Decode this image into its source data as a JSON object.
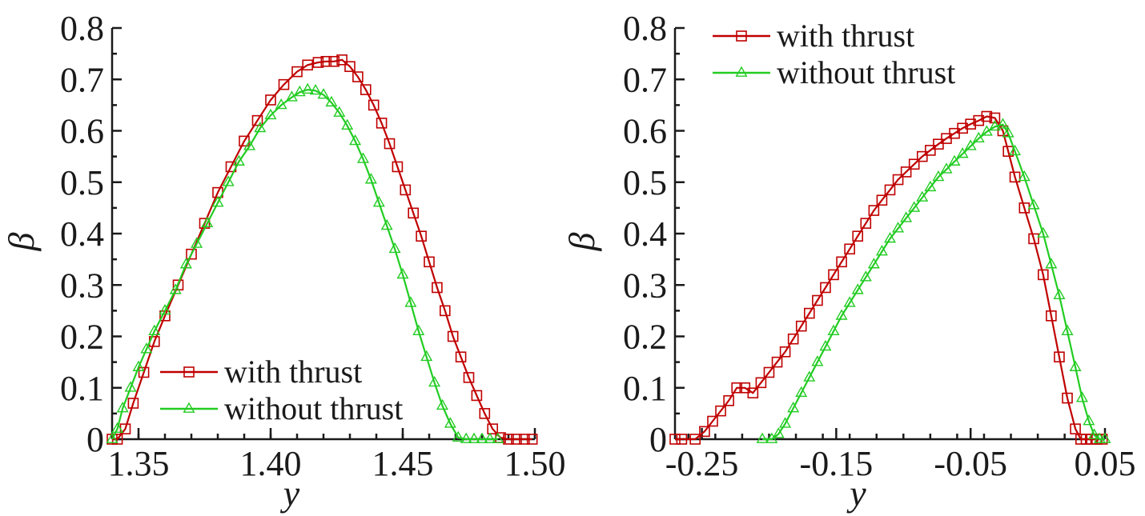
{
  "chart_data": [
    {
      "type": "line",
      "xlabel": "y",
      "ylabel": "β",
      "xlim": [
        1.34,
        1.5
      ],
      "ylim": [
        0,
        0.8
      ],
      "grid": false,
      "legend_position": "bottom-left",
      "x_ticks": [
        1.35,
        1.4,
        1.45,
        1.5
      ],
      "x_tick_labels": [
        "1.35",
        "1.40",
        "1.45",
        "1.50"
      ],
      "x_minor_step": 0.01,
      "y_ticks": [
        0,
        0.1,
        0.2,
        0.3,
        0.4,
        0.5,
        0.6,
        0.7,
        0.8
      ],
      "y_tick_labels": [
        "0",
        "0.1",
        "0.2",
        "0.3",
        "0.4",
        "0.5",
        "0.6",
        "0.7",
        "0.8"
      ],
      "series": [
        {
          "name": "with thrust",
          "color": "#c00000",
          "marker": "square",
          "x": [
            1.34,
            1.342,
            1.345,
            1.348,
            1.352,
            1.356,
            1.36,
            1.365,
            1.37,
            1.375,
            1.38,
            1.385,
            1.39,
            1.395,
            1.4,
            1.405,
            1.41,
            1.414,
            1.418,
            1.421,
            1.424,
            1.427,
            1.43,
            1.433,
            1.436,
            1.439,
            1.442,
            1.445,
            1.448,
            1.451,
            1.454,
            1.457,
            1.46,
            1.463,
            1.466,
            1.469,
            1.472,
            1.475,
            1.478,
            1.481,
            1.484,
            1.487,
            1.49,
            1.493,
            1.496,
            1.499
          ],
          "y": [
            0.0,
            0.0,
            0.02,
            0.07,
            0.13,
            0.19,
            0.24,
            0.3,
            0.36,
            0.42,
            0.48,
            0.53,
            0.58,
            0.62,
            0.66,
            0.69,
            0.715,
            0.728,
            0.733,
            0.735,
            0.735,
            0.738,
            0.725,
            0.705,
            0.68,
            0.65,
            0.615,
            0.575,
            0.53,
            0.485,
            0.44,
            0.395,
            0.345,
            0.295,
            0.25,
            0.2,
            0.16,
            0.12,
            0.085,
            0.05,
            0.02,
            0.003,
            0.0,
            0.0,
            0.0,
            0.0
          ]
        },
        {
          "name": "without thrust",
          "color": "#22cc22",
          "marker": "triangle",
          "x": [
            1.34,
            1.342,
            1.344,
            1.347,
            1.35,
            1.353,
            1.356,
            1.36,
            1.364,
            1.368,
            1.372,
            1.376,
            1.38,
            1.384,
            1.388,
            1.392,
            1.396,
            1.4,
            1.404,
            1.408,
            1.411,
            1.414,
            1.417,
            1.42,
            1.423,
            1.426,
            1.429,
            1.432,
            1.435,
            1.438,
            1.441,
            1.444,
            1.447,
            1.45,
            1.453,
            1.456,
            1.459,
            1.462,
            1.465,
            1.468,
            1.471,
            1.474,
            1.477,
            1.48,
            1.483,
            1.486
          ],
          "y": [
            0.0,
            0.02,
            0.06,
            0.1,
            0.14,
            0.175,
            0.21,
            0.25,
            0.29,
            0.34,
            0.38,
            0.42,
            0.46,
            0.5,
            0.54,
            0.57,
            0.605,
            0.63,
            0.65,
            0.665,
            0.675,
            0.68,
            0.678,
            0.67,
            0.655,
            0.635,
            0.61,
            0.58,
            0.545,
            0.505,
            0.46,
            0.415,
            0.37,
            0.32,
            0.265,
            0.21,
            0.16,
            0.11,
            0.065,
            0.03,
            0.003,
            0.0,
            0.0,
            0.0,
            0.0,
            0.0
          ]
        }
      ]
    },
    {
      "type": "line",
      "xlabel": "y",
      "ylabel": "β",
      "xlim": [
        -0.27,
        0.05
      ],
      "ylim": [
        0,
        0.8
      ],
      "grid": false,
      "legend_position": "top-left",
      "x_ticks": [
        -0.25,
        -0.15,
        -0.05,
        0.05
      ],
      "x_tick_labels": [
        "-0.25",
        "-0.15",
        "-0.05",
        "0.05"
      ],
      "x_minor_step": 0.02,
      "y_ticks": [
        0,
        0.1,
        0.2,
        0.3,
        0.4,
        0.5,
        0.6,
        0.7,
        0.8
      ],
      "y_tick_labels": [
        "0",
        "0.1",
        "0.2",
        "0.3",
        "0.4",
        "0.5",
        "0.6",
        "0.7",
        "0.8"
      ],
      "series": [
        {
          "name": "with thrust",
          "color": "#c00000",
          "marker": "square",
          "x": [
            -0.27,
            -0.265,
            -0.255,
            -0.248,
            -0.242,
            -0.236,
            -0.23,
            -0.224,
            -0.218,
            -0.212,
            -0.206,
            -0.2,
            -0.194,
            -0.188,
            -0.182,
            -0.176,
            -0.17,
            -0.164,
            -0.158,
            -0.152,
            -0.146,
            -0.14,
            -0.134,
            -0.128,
            -0.122,
            -0.116,
            -0.11,
            -0.104,
            -0.098,
            -0.092,
            -0.086,
            -0.08,
            -0.074,
            -0.068,
            -0.062,
            -0.056,
            -0.05,
            -0.044,
            -0.038,
            -0.032,
            -0.026,
            -0.022,
            -0.017,
            -0.01,
            -0.003,
            0.004,
            0.01,
            0.016,
            0.022,
            0.028,
            0.032,
            0.036,
            0.04,
            0.044,
            0.048
          ],
          "y": [
            0.0,
            0.0,
            0.0,
            0.015,
            0.035,
            0.055,
            0.075,
            0.1,
            0.1,
            0.09,
            0.11,
            0.13,
            0.15,
            0.17,
            0.195,
            0.22,
            0.245,
            0.27,
            0.295,
            0.32,
            0.345,
            0.37,
            0.395,
            0.42,
            0.445,
            0.465,
            0.485,
            0.505,
            0.52,
            0.535,
            0.55,
            0.562,
            0.574,
            0.585,
            0.595,
            0.605,
            0.613,
            0.62,
            0.628,
            0.625,
            0.6,
            0.56,
            0.51,
            0.45,
            0.39,
            0.32,
            0.24,
            0.16,
            0.08,
            0.02,
            0.0,
            0.0,
            0.0,
            0.0,
            0.0
          ]
        },
        {
          "name": "without thrust",
          "color": "#22cc22",
          "marker": "triangle",
          "x": [
            -0.205,
            -0.198,
            -0.193,
            -0.188,
            -0.182,
            -0.176,
            -0.17,
            -0.164,
            -0.158,
            -0.152,
            -0.146,
            -0.14,
            -0.134,
            -0.128,
            -0.122,
            -0.116,
            -0.11,
            -0.104,
            -0.098,
            -0.092,
            -0.086,
            -0.08,
            -0.074,
            -0.068,
            -0.062,
            -0.056,
            -0.05,
            -0.044,
            -0.038,
            -0.032,
            -0.026,
            -0.022,
            -0.017,
            -0.01,
            -0.003,
            0.004,
            0.01,
            0.016,
            0.022,
            0.028,
            0.033,
            0.038,
            0.042,
            0.046,
            0.05
          ],
          "y": [
            0.0,
            0.0,
            0.01,
            0.03,
            0.06,
            0.09,
            0.12,
            0.15,
            0.18,
            0.21,
            0.24,
            0.265,
            0.29,
            0.315,
            0.34,
            0.365,
            0.39,
            0.41,
            0.43,
            0.45,
            0.47,
            0.49,
            0.51,
            0.525,
            0.54,
            0.555,
            0.57,
            0.585,
            0.598,
            0.608,
            0.612,
            0.595,
            0.56,
            0.51,
            0.455,
            0.4,
            0.34,
            0.28,
            0.21,
            0.14,
            0.08,
            0.035,
            0.008,
            0.0,
            0.0
          ]
        }
      ]
    }
  ]
}
